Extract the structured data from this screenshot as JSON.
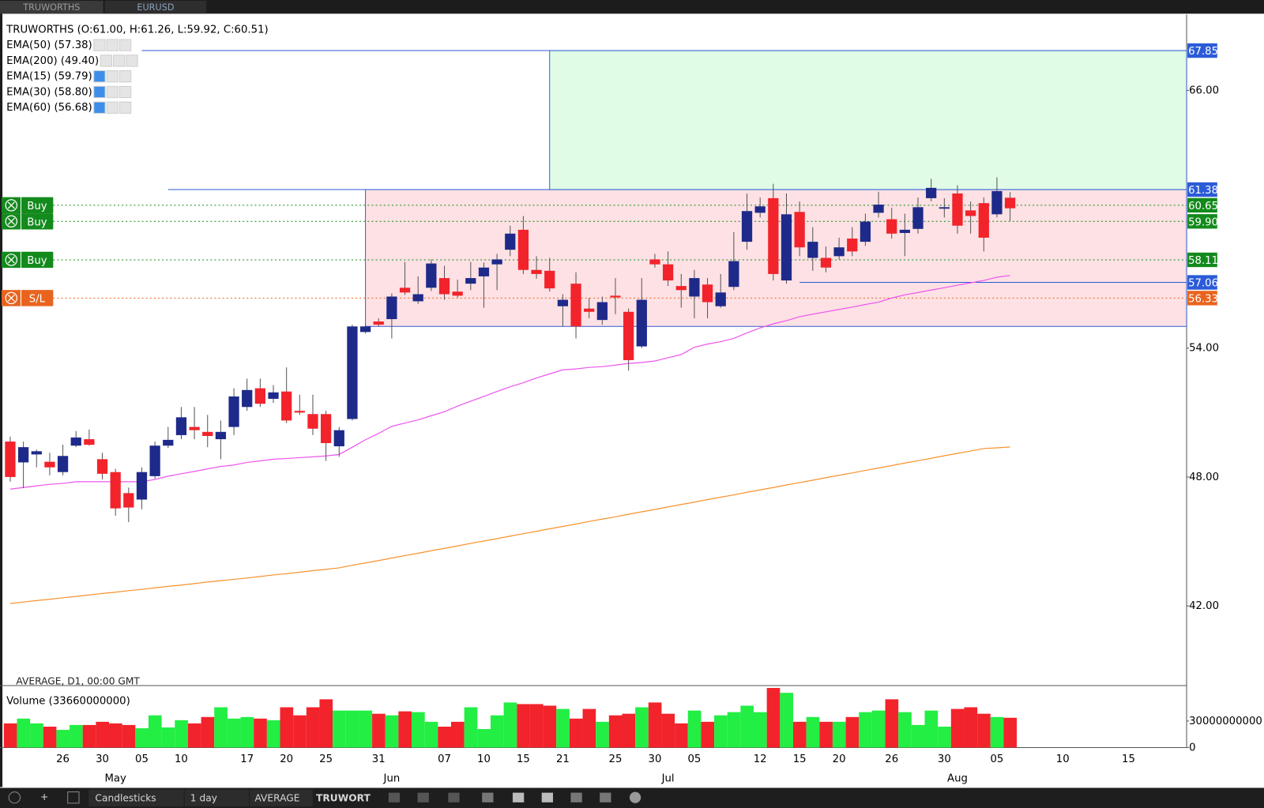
{
  "tabs": [
    "TRUWORTHS",
    "EURUSD"
  ],
  "toolbar": [
    "Candlesticks",
    "1 day",
    "AVERAGE",
    "TRUWORT"
  ],
  "chart_data": [
    {
      "type": "candlestick",
      "title": "TRUWORTHS (O:61.00, H:61.26, L:59.92, C:60.51)",
      "footer": "AVERAGE, D1, 00:00 GMT",
      "categories": [
        null,
        null,
        null,
        null,
        "26",
        null,
        null,
        "30",
        null,
        null,
        "05",
        null,
        null,
        "10",
        null,
        null,
        null,
        null,
        "17",
        null,
        null,
        "20",
        null,
        null,
        "25",
        null,
        null,
        null,
        "31",
        null,
        null,
        null,
        null,
        "07",
        null,
        null,
        "10",
        null,
        null,
        "15",
        null,
        null,
        "21",
        null,
        null,
        null,
        "25",
        null,
        null,
        "30",
        null,
        null,
        "05",
        null,
        null,
        null,
        null,
        "12",
        null,
        null,
        "15",
        null,
        null,
        "20",
        null,
        null,
        null,
        "26",
        null,
        null,
        null,
        "30",
        null,
        null,
        null,
        "05",
        null,
        null,
        null,
        null,
        "10",
        null,
        null,
        null,
        null,
        "15"
      ],
      "months": [
        null,
        null,
        null,
        null,
        null,
        null,
        null,
        null,
        "May",
        null,
        null,
        null,
        null,
        null,
        null,
        null,
        null,
        null,
        null,
        null,
        null,
        null,
        null,
        null,
        null,
        null,
        null,
        null,
        null,
        "Jun",
        null,
        null,
        null,
        null,
        null,
        null,
        null,
        null,
        null,
        null,
        null,
        null,
        null,
        null,
        null,
        null,
        null,
        null,
        null,
        null,
        "Jul",
        null,
        null,
        null,
        null,
        null,
        null,
        null,
        null,
        null,
        null,
        null,
        null,
        null,
        null,
        null,
        null,
        null,
        null,
        null,
        null,
        null,
        "Aug",
        null,
        null,
        null,
        null,
        null,
        null,
        null,
        null,
        null,
        null,
        null,
        null,
        null
      ],
      "open": [
        49.65,
        48.68,
        49.05,
        48.71,
        48.23,
        49.46,
        49.76,
        48.83,
        48.23,
        47.25,
        46.95,
        48.04,
        49.46,
        49.95,
        50.33,
        50.1,
        49.76,
        50.33,
        51.26,
        52.13,
        51.64,
        51.98,
        51.08,
        50.93,
        50.93,
        49.43,
        50.7,
        54.75,
        55.24,
        55.35,
        56.81,
        56.18,
        56.81,
        57.26,
        56.63,
        57.0,
        57.34,
        57.9,
        58.58,
        59.51,
        57.64,
        57.6,
        55.95,
        57.0,
        55.84,
        55.31,
        56.44,
        55.69,
        54.08,
        58.13,
        57.9,
        56.89,
        56.4,
        56.96,
        55.95,
        56.85,
        58.95,
        60.3,
        60.98,
        57.15,
        60.34,
        58.2,
        58.2,
        58.28,
        59.1,
        58.95,
        60.3,
        60.0,
        59.36,
        59.55,
        60.98,
        60.49,
        61.2,
        60.41,
        60.75,
        60.23,
        61.0,
        null,
        null,
        null,
        null,
        null,
        null,
        null,
        null,
        null
      ],
      "high": [
        49.88,
        49.65,
        49.28,
        49.13,
        49.5,
        50.14,
        50.21,
        49.13,
        48.38,
        47.51,
        48.45,
        49.65,
        50.33,
        51.26,
        51.26,
        50.89,
        50.63,
        52.13,
        52.58,
        52.58,
        52.28,
        53.1,
        51.83,
        51.83,
        51.08,
        50.33,
        55.09,
        55.09,
        55.39,
        56.55,
        58.01,
        57.34,
        58.13,
        57.83,
        57.19,
        58.01,
        57.98,
        58.39,
        59.7,
        60.15,
        58.28,
        58.2,
        56.51,
        57.53,
        56.33,
        56.4,
        57.26,
        55.84,
        57.26,
        58.39,
        58.5,
        57.45,
        57.64,
        57.26,
        57.45,
        59.4,
        61.2,
        61.01,
        61.65,
        61.2,
        60.83,
        59.63,
        58.73,
        59.14,
        59.63,
        60.26,
        61.28,
        60.53,
        60.26,
        61.01,
        61.88,
        60.98,
        61.58,
        60.83,
        61.01,
        61.95,
        61.26,
        null,
        null,
        null,
        null,
        null,
        null,
        null,
        null,
        null
      ],
      "low": [
        47.78,
        47.48,
        48.45,
        48.08,
        48.08,
        49.39,
        49.46,
        47.89,
        46.2,
        45.9,
        46.5,
        47.93,
        49.35,
        49.76,
        49.76,
        49.39,
        48.83,
        49.95,
        51.08,
        51.26,
        51.45,
        50.51,
        50.89,
        49.95,
        48.75,
        48.94,
        50.63,
        54.68,
        55.01,
        54.45,
        56.48,
        56.06,
        56.66,
        56.25,
        56.36,
        56.7,
        55.88,
        56.7,
        58.28,
        57.45,
        57.23,
        56.63,
        55.01,
        54.45,
        55.39,
        55.09,
        55.58,
        52.95,
        54.0,
        57.75,
        56.89,
        55.88,
        55.39,
        55.39,
        55.88,
        56.7,
        58.58,
        60.08,
        57.15,
        57.0,
        58.28,
        57.6,
        57.53,
        58.13,
        58.28,
        58.76,
        60.08,
        59.1,
        58.28,
        59.33,
        60.83,
        60.08,
        59.33,
        59.33,
        58.5,
        60.08,
        59.92,
        null,
        null,
        null,
        null,
        null,
        null,
        null,
        null,
        null
      ],
      "close": [
        48.0,
        49.39,
        49.2,
        48.45,
        48.98,
        49.84,
        49.5,
        48.15,
        46.54,
        46.58,
        48.23,
        49.46,
        49.73,
        50.78,
        50.18,
        49.91,
        50.1,
        51.75,
        52.05,
        51.41,
        51.94,
        50.63,
        51.0,
        50.25,
        49.58,
        50.18,
        55.01,
        55.01,
        55.09,
        56.4,
        56.59,
        56.51,
        57.94,
        56.51,
        56.44,
        57.26,
        57.75,
        58.13,
        59.33,
        57.64,
        57.45,
        56.78,
        56.25,
        55.01,
        55.69,
        56.14,
        56.36,
        53.44,
        56.25,
        57.9,
        57.15,
        56.7,
        57.26,
        56.14,
        56.59,
        58.05,
        60.38,
        60.6,
        57.45,
        60.23,
        58.69,
        58.95,
        57.75,
        58.69,
        58.5,
        59.89,
        60.68,
        59.33,
        59.51,
        60.56,
        61.46,
        60.56,
        59.7,
        60.15,
        59.14,
        61.31,
        60.51,
        null,
        null,
        null,
        null,
        null,
        null,
        null,
        null,
        null
      ],
      "up_color": "#1e2a8a",
      "down_color": "#f2232b",
      "overlays": [
        {
          "name": "EMA(50) (57.38)",
          "color": "#ee55ee",
          "visible": true,
          "values": [
            47.44,
            47.51,
            47.59,
            47.66,
            47.7,
            47.78,
            47.78,
            47.78,
            47.78,
            47.78,
            47.78,
            47.89,
            48.04,
            48.15,
            48.26,
            48.38,
            48.49,
            48.56,
            48.68,
            48.75,
            48.83,
            48.86,
            48.9,
            48.94,
            48.98,
            49.05,
            49.39,
            49.73,
            50.03,
            50.36,
            50.51,
            50.66,
            50.85,
            51.04,
            51.3,
            51.53,
            51.75,
            51.98,
            52.2,
            52.39,
            52.61,
            52.8,
            52.99,
            53.03,
            53.1,
            53.14,
            53.21,
            53.29,
            53.33,
            53.4,
            53.55,
            53.7,
            54.04,
            54.19,
            54.3,
            54.45,
            54.71,
            54.94,
            55.13,
            55.28,
            55.46,
            55.58,
            55.69,
            55.8,
            55.91,
            56.03,
            56.14,
            56.33,
            56.48,
            56.59,
            56.7,
            56.81,
            56.93,
            57.04,
            57.15,
            57.3,
            57.38,
            null,
            null,
            null,
            null,
            null,
            null,
            null,
            null,
            null
          ]
        },
        {
          "name": "EMA(200) (49.40)",
          "color": "#f7922e",
          "visible": true,
          "values": [
            42.11,
            42.18,
            42.25,
            42.31,
            42.38,
            42.44,
            42.51,
            42.58,
            42.64,
            42.71,
            42.77,
            42.84,
            42.91,
            42.97,
            43.04,
            43.11,
            43.17,
            43.24,
            43.3,
            43.37,
            43.44,
            43.5,
            43.57,
            43.64,
            43.7,
            43.77,
            43.89,
            44.0,
            44.11,
            44.23,
            44.34,
            44.45,
            44.57,
            44.68,
            44.79,
            44.91,
            45.02,
            45.13,
            45.25,
            45.36,
            45.47,
            45.59,
            45.7,
            45.81,
            45.93,
            46.04,
            46.15,
            46.27,
            46.38,
            46.49,
            46.61,
            46.72,
            46.83,
            46.95,
            47.06,
            47.17,
            47.29,
            47.4,
            47.51,
            47.63,
            47.74,
            47.85,
            47.97,
            48.08,
            48.19,
            48.31,
            48.42,
            48.53,
            48.65,
            48.76,
            48.87,
            48.99,
            49.1,
            49.21,
            49.33,
            49.36,
            49.4,
            null,
            null,
            null,
            null,
            null,
            null,
            null,
            null,
            null
          ]
        },
        {
          "name": "EMA(15) (59.79)",
          "color": "#2b8ce0",
          "visible": false
        },
        {
          "name": "EMA(30) (58.80)",
          "color": "#2b8ce0",
          "visible": false
        },
        {
          "name": "EMA(60) (56.68)",
          "color": "#2b8ce0",
          "visible": false
        }
      ],
      "zones": [
        {
          "low": 55.01,
          "high": 61.38,
          "color": "#fde1e4",
          "border": "#3a5fd0",
          "start_index": 27
        },
        {
          "low": 61.38,
          "high": 67.85,
          "color": "#e0fce7",
          "border": "#3a5fd0",
          "start_index": 41
        }
      ],
      "levels": [
        {
          "value": 67.85,
          "color": "#2b5bd7",
          "style": "solid",
          "start_index": 10
        },
        {
          "value": 61.38,
          "color": "#2b5bd7",
          "style": "solid",
          "start_index": 12
        },
        {
          "value": 60.65,
          "color": "#138a1c",
          "style": "dotted",
          "order": "Buy"
        },
        {
          "value": 59.9,
          "label": "59.90",
          "color": "#138a1c",
          "style": "dotted",
          "order": "Buy"
        },
        {
          "value": 58.11,
          "color": "#138a1c",
          "style": "dotted",
          "order": "Buy"
        },
        {
          "value": 57.06,
          "color": "#2b5bd7",
          "style": "solid",
          "start_index": 60
        },
        {
          "value": 56.33,
          "color": "#e8641e",
          "style": "dotted",
          "order": "S/L"
        }
      ],
      "ylim": [
        38.33,
        69.53
      ],
      "yticks": [
        {
          "value": 66,
          "label": "66.00"
        },
        {
          "value": 54,
          "label": "54.00"
        },
        {
          "value": 48,
          "label": "48.00"
        },
        {
          "value": 42,
          "label": "42.00"
        }
      ]
    },
    {
      "type": "bar",
      "title": "Volume (33660000000)",
      "up_color": "#22ee44",
      "down_color": "#f2232b",
      "values": [
        27300000000,
        32700000000,
        27300000000,
        23600000000,
        20000000000,
        25500000000,
        25500000000,
        29100000000,
        27300000000,
        25500000000,
        21800000000,
        36400000000,
        22700000000,
        30900000000,
        27300000000,
        34500000000,
        45500000000,
        32700000000,
        34500000000,
        32700000000,
        30900000000,
        45500000000,
        36400000000,
        45500000000,
        54500000000,
        41800000000,
        41800000000,
        41800000000,
        38200000000,
        36400000000,
        40900000000,
        40000000000,
        29100000000,
        23600000000,
        29100000000,
        45500000000,
        20900000000,
        36400000000,
        50900000000,
        49100000000,
        49100000000,
        47300000000,
        43600000000,
        32700000000,
        43600000000,
        29100000000,
        36400000000,
        38200000000,
        45500000000,
        50900000000,
        38200000000,
        27300000000,
        41800000000,
        29100000000,
        36400000000,
        40000000000,
        47300000000,
        40000000000,
        67300000000,
        61800000000,
        29100000000,
        34500000000,
        29100000000,
        29100000000,
        34500000000,
        40000000000,
        41800000000,
        54500000000,
        40000000000,
        25500000000,
        41800000000,
        23600000000,
        43600000000,
        45500000000,
        38200000000,
        34500000000,
        33660000000,
        null,
        null,
        null,
        null,
        null,
        null,
        null,
        null,
        null
      ],
      "ylim": [
        0,
        68200000000
      ],
      "yticks": [
        0,
        30000000000
      ]
    }
  ]
}
